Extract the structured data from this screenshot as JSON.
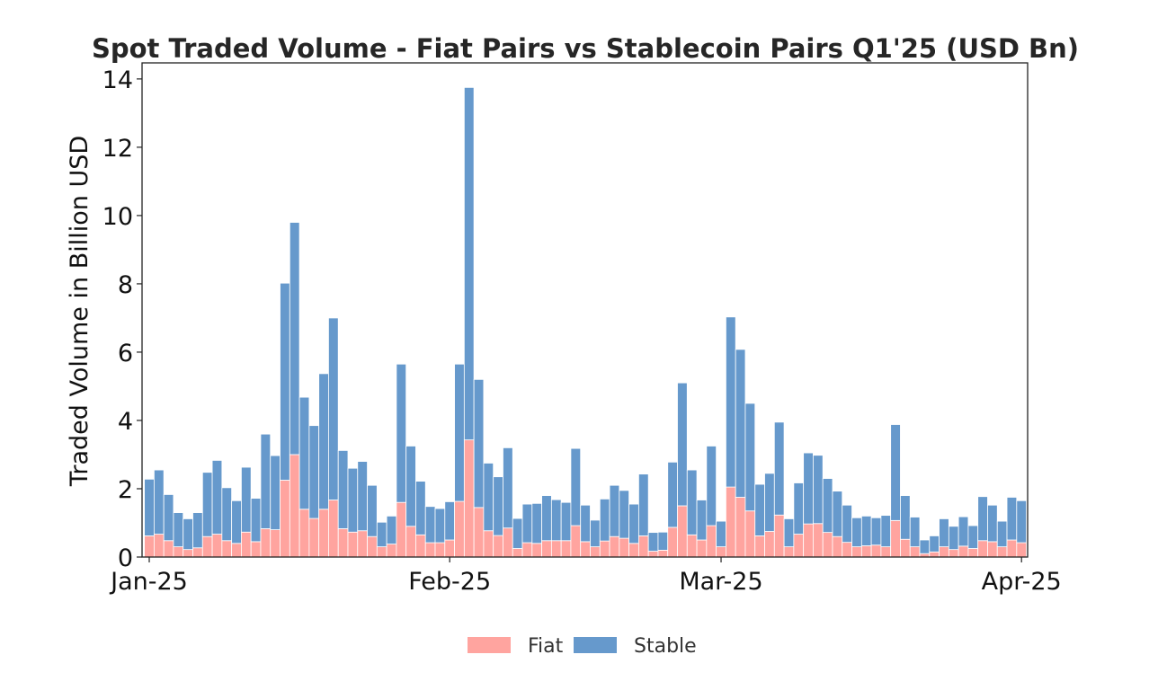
{
  "chart_data": {
    "type": "bar",
    "stacked": true,
    "title": "Spot Traded Volume - Fiat Pairs vs Stablecoin Pairs Q1'25 (USD Bn)",
    "xlabel": "",
    "ylabel": "Traded Volume in Billion USD",
    "ylim": [
      0,
      14.47
    ],
    "yticks": [
      0,
      2,
      4,
      6,
      8,
      10,
      12,
      14
    ],
    "xtick_labels": [
      "Jan-25",
      "Feb-25",
      "Mar-25",
      "Apr-25"
    ],
    "xtick_dates": [
      "2025-01-01",
      "2025-02-01",
      "2025-03-01",
      "2025-04-01"
    ],
    "grid": false,
    "legend_position": "bottom-center",
    "x_first_date": "2025-01-01",
    "series": [
      {
        "name": "Fiat",
        "color": "#FFA49F",
        "values": [
          0.62,
          0.67,
          0.48,
          0.3,
          0.22,
          0.27,
          0.6,
          0.67,
          0.48,
          0.4,
          0.73,
          0.45,
          0.83,
          0.8,
          2.25,
          3.0,
          1.4,
          1.13,
          1.4,
          1.67,
          0.83,
          0.73,
          0.77,
          0.6,
          0.3,
          0.38,
          1.6,
          0.9,
          0.65,
          0.42,
          0.42,
          0.5,
          1.63,
          3.43,
          1.45,
          0.77,
          0.63,
          0.85,
          0.25,
          0.42,
          0.4,
          0.48,
          0.48,
          0.48,
          0.92,
          0.45,
          0.3,
          0.47,
          0.6,
          0.55,
          0.4,
          0.62,
          0.17,
          0.2,
          0.87,
          1.5,
          0.65,
          0.5,
          0.92,
          0.3,
          2.05,
          1.75,
          1.35,
          0.62,
          0.75,
          1.23,
          0.3,
          0.67,
          0.97,
          0.98,
          0.72,
          0.6,
          0.43,
          0.3,
          0.33,
          0.35,
          0.3,
          1.07,
          0.52,
          0.3,
          0.1,
          0.15,
          0.3,
          0.22,
          0.32,
          0.25,
          0.48,
          0.45,
          0.3,
          0.5,
          0.42
        ]
      },
      {
        "name": "Stable",
        "color": "#6699CC",
        "values": [
          1.66,
          1.88,
          1.35,
          1.0,
          0.9,
          1.03,
          1.88,
          2.16,
          1.55,
          1.25,
          1.9,
          1.27,
          2.77,
          2.17,
          5.77,
          6.8,
          3.28,
          2.72,
          3.97,
          5.33,
          2.29,
          1.87,
          2.03,
          1.5,
          0.72,
          0.82,
          4.05,
          2.35,
          1.57,
          1.06,
          1.0,
          1.12,
          4.02,
          10.32,
          3.75,
          1.98,
          1.72,
          2.35,
          0.88,
          1.13,
          1.17,
          1.32,
          1.2,
          1.12,
          2.26,
          1.07,
          0.78,
          1.23,
          1.5,
          1.4,
          1.15,
          1.81,
          0.55,
          0.53,
          1.91,
          3.6,
          1.9,
          1.17,
          2.33,
          0.75,
          4.98,
          4.33,
          3.15,
          1.51,
          1.7,
          2.72,
          0.82,
          1.5,
          2.08,
          2.0,
          1.58,
          1.33,
          1.09,
          0.85,
          0.87,
          0.8,
          0.92,
          2.81,
          1.28,
          0.87,
          0.4,
          0.47,
          0.82,
          0.68,
          0.86,
          0.67,
          1.29,
          1.07,
          0.75,
          1.25,
          1.23
        ]
      }
    ]
  }
}
